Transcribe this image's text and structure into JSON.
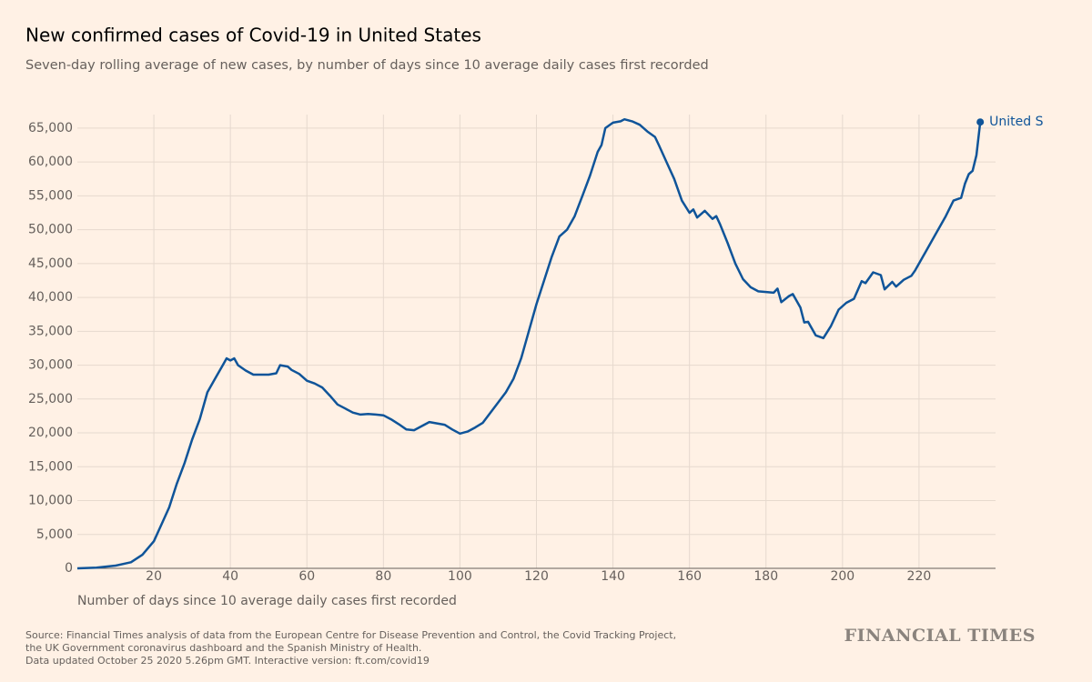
{
  "chart_data": {
    "type": "line",
    "title": "New confirmed cases of Covid-19 in United States",
    "subtitle": "Seven-day rolling average of new cases, by number of days since 10 average daily cases first recorded",
    "x_label": "Number of days since 10 average daily cases first recorded",
    "source": [
      "Source: Financial Times analysis of data from the European Centre for Disease Prevention and Control, the Covid Tracking Project,",
      "the UK Government coronavirus dashboard and the Spanish Ministry of Health.",
      "Data updated October 25 2020 5.26pm GMT. Interactive version: ft.com/covid19"
    ],
    "brand": "FINANCIAL TIMES",
    "grid": true,
    "xlim": [
      0,
      240
    ],
    "ylim": [
      0,
      67000
    ],
    "xticks": [
      20,
      40,
      60,
      80,
      100,
      120,
      140,
      160,
      180,
      200,
      220
    ],
    "yticks": [
      0,
      {
        "value": 5000,
        "label": "5,000"
      },
      {
        "value": 10000,
        "label": "10,000"
      },
      {
        "value": 15000,
        "label": "15,000"
      },
      {
        "value": 20000,
        "label": "20,000"
      },
      {
        "value": 25000,
        "label": "25,000"
      },
      {
        "value": 30000,
        "label": "30,000"
      },
      {
        "value": 35000,
        "label": "35,000"
      },
      {
        "value": 40000,
        "label": "40,000"
      },
      {
        "value": 45000,
        "label": "45,000"
      },
      {
        "value": 50000,
        "label": "50,000"
      },
      {
        "value": 55000,
        "label": "55,000"
      },
      {
        "value": 60000,
        "label": "60,000"
      },
      {
        "value": 65000,
        "label": "65,000"
      }
    ],
    "x": [
      0,
      5,
      10,
      14,
      17,
      20,
      22,
      24,
      26,
      28,
      30,
      32,
      34,
      36,
      38,
      39,
      40,
      41,
      42,
      44,
      46,
      48,
      50,
      52,
      53,
      55,
      56,
      58,
      60,
      62,
      64,
      66,
      68,
      70,
      72,
      74,
      76,
      78,
      80,
      82,
      84,
      86,
      88,
      90,
      92,
      94,
      96,
      98,
      100,
      102,
      104,
      106,
      108,
      110,
      112,
      114,
      116,
      118,
      120,
      122,
      124,
      126,
      128,
      130,
      132,
      134,
      136,
      137,
      138,
      140,
      142,
      143,
      145,
      147,
      149,
      151,
      152,
      154,
      156,
      158,
      160,
      161,
      162,
      164,
      166,
      167,
      168,
      170,
      172,
      174,
      176,
      178,
      180,
      182,
      183,
      184,
      186,
      187,
      189,
      190,
      191,
      193,
      195,
      197,
      199,
      201,
      203,
      205,
      206,
      208,
      210,
      211,
      213,
      214,
      216,
      218,
      219,
      221,
      223,
      225,
      227,
      229,
      231,
      232,
      233,
      234,
      235,
      236
    ],
    "series": [
      {
        "name": "United S",
        "color": "#0f5499",
        "values": [
          0,
          100,
          400,
          900,
          2000,
          4000,
          6500,
          9000,
          12500,
          15500,
          19000,
          22000,
          26000,
          28000,
          30000,
          31000,
          30700,
          31000,
          30000,
          29200,
          28600,
          28600,
          28600,
          28800,
          30000,
          29800,
          29300,
          28700,
          27700,
          27300,
          26700,
          25500,
          24200,
          23600,
          23000,
          22700,
          22800,
          22700,
          22600,
          22000,
          21300,
          20500,
          20400,
          21000,
          21600,
          21400,
          21200,
          20500,
          19900,
          20200,
          20800,
          21500,
          23000,
          24500,
          26000,
          28000,
          31000,
          35000,
          39000,
          42500,
          46000,
          49000,
          50000,
          52000,
          55000,
          58000,
          61500,
          62500,
          65000,
          65800,
          66000,
          66300,
          66000,
          65500,
          64500,
          63700,
          62500,
          60000,
          57500,
          54300,
          52500,
          53000,
          51800,
          52800,
          51600,
          52000,
          50800,
          48000,
          45000,
          42700,
          41500,
          40900,
          40800,
          40700,
          41300,
          39300,
          40200,
          40500,
          38500,
          36300,
          36400,
          34400,
          34000,
          35800,
          38200,
          39200,
          39800,
          42400,
          42100,
          43700,
          43300,
          41200,
          42300,
          41600,
          42600,
          43200,
          44000,
          46000,
          48000,
          50000,
          52000,
          54300,
          54700,
          56800,
          58200,
          58700,
          61000,
          65900
        ]
      }
    ]
  }
}
